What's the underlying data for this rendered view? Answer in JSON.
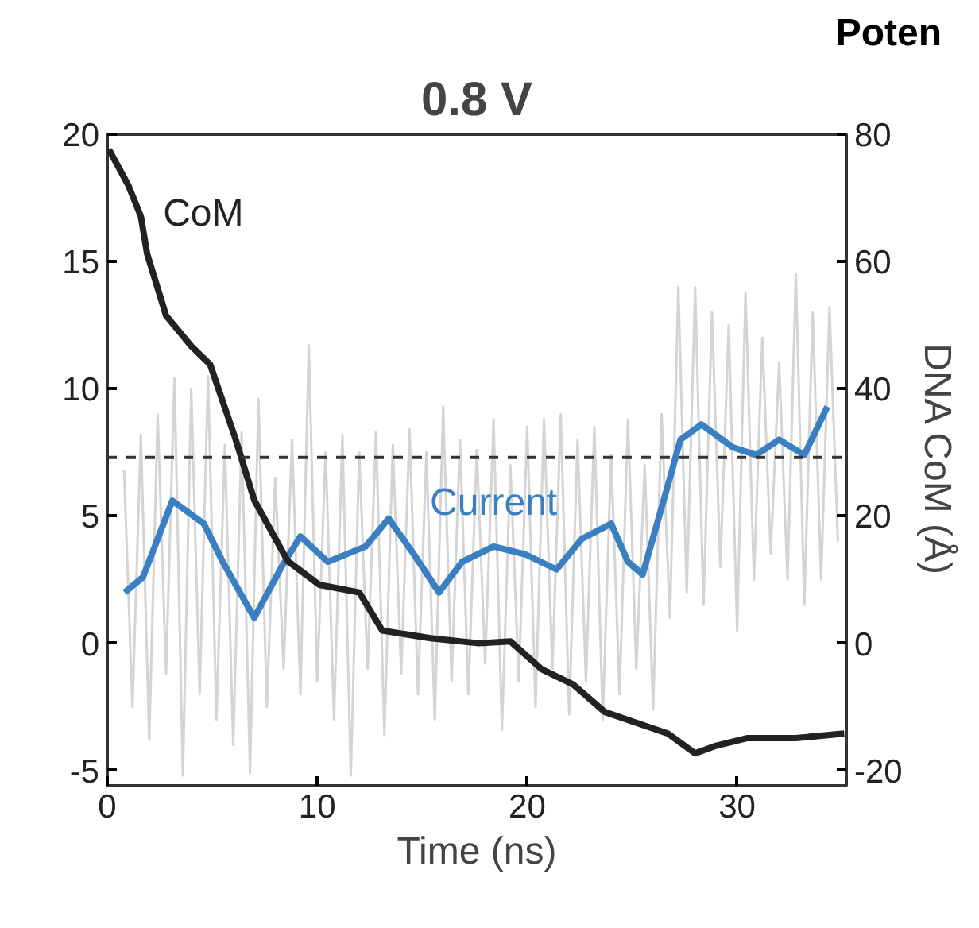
{
  "chart_data": {
    "type": "line",
    "title": "0.8 V",
    "xlabel": "Time (ns)",
    "y2label": "DNA CoM (Å)",
    "annotations": [
      "Poten"
    ],
    "xlim": [
      0,
      35.2
    ],
    "xticks": [
      0,
      10,
      20,
      30
    ],
    "ylim": [
      -5.6,
      20
    ],
    "yticks": [
      -5,
      0,
      5,
      10,
      15,
      20
    ],
    "y2lim": [
      -22.4,
      80
    ],
    "y2ticks": [
      -20,
      0,
      20,
      40,
      60,
      80
    ],
    "grid": false,
    "line_style": "solid",
    "ref_lines": [
      {
        "axis": "y",
        "value": 7.3,
        "color": "#333333",
        "line_style": "dashed"
      }
    ],
    "series": [
      {
        "color": "#d4d4d4",
        "x": [
          0.8,
          1.2,
          1.6,
          2.0,
          2.4,
          2.8,
          3.2,
          3.6,
          4.0,
          4.4,
          4.8,
          5.2,
          5.6,
          6.0,
          6.4,
          6.8,
          7.2,
          7.6,
          8.0,
          8.4,
          8.8,
          9.2,
          9.6,
          10.0,
          10.4,
          10.8,
          11.2,
          11.6,
          12.0,
          12.4,
          12.8,
          13.2,
          13.6,
          14.0,
          14.4,
          14.8,
          15.2,
          15.6,
          16.0,
          16.4,
          16.8,
          17.2,
          17.6,
          18.0,
          18.4,
          18.8,
          19.2,
          19.6,
          20.0,
          20.4,
          20.8,
          21.2,
          21.6,
          22.0,
          22.4,
          22.8,
          23.2,
          23.6,
          24.0,
          24.4,
          24.8,
          25.2,
          25.6,
          26.0,
          26.4,
          26.8,
          27.2,
          27.6,
          28.0,
          28.4,
          28.8,
          29.2,
          29.6,
          30.0,
          30.4,
          30.8,
          31.2,
          31.6,
          32.0,
          32.4,
          32.8,
          33.2,
          33.6,
          34.0,
          34.4,
          34.8
        ],
        "values": [
          6.8,
          -2.5,
          8.2,
          -3.8,
          9.0,
          -1.2,
          10.4,
          -5.2,
          10.0,
          -2.0,
          10.5,
          -3.0,
          7.8,
          -4.0,
          8.3,
          -5.1,
          9.6,
          -2.5,
          6.5,
          -1.0,
          8.0,
          -2.0,
          11.7,
          -1.5,
          7.5,
          -3.0,
          8.2,
          -5.2,
          7.5,
          -1.0,
          8.3,
          -3.6,
          7.8,
          -1.2,
          8.4,
          -2.0,
          7.5,
          -3.0,
          9.3,
          -1.5,
          8.0,
          -2.0,
          7.6,
          -0.8,
          8.8,
          -3.4,
          7.0,
          -1.5,
          8.5,
          -2.5,
          8.8,
          -1.0,
          9.0,
          -2.8,
          8.0,
          -1.5,
          8.5,
          -3.0,
          7.4,
          -2.0,
          8.8,
          -1.0,
          7.0,
          -2.6,
          9.0,
          1.0,
          14.0,
          2.0,
          14.0,
          1.5,
          13.0,
          3.0,
          12.5,
          0.5,
          13.8,
          2.5,
          12.0,
          3.5,
          11.0,
          2.5,
          14.5,
          1.5,
          13.0,
          2.5,
          13.2,
          4.0
        ]
      },
      {
        "name": "Current",
        "color": "#3a7fc1",
        "x": [
          0.83,
          1.7,
          3.1,
          4.6,
          5.5,
          7.0,
          8.3,
          9.2,
          10.5,
          12.3,
          13.4,
          14.6,
          15.8,
          16.9,
          18.4,
          19.9,
          21.4,
          22.6,
          24.0,
          24.8,
          25.5,
          26.7,
          27.3,
          28.3,
          29.8,
          30.9,
          32.0,
          33.2,
          34.3
        ],
        "values": [
          2.0,
          2.6,
          5.6,
          4.7,
          3.2,
          1.0,
          3.0,
          4.2,
          3.2,
          3.8,
          4.9,
          3.5,
          2.0,
          3.2,
          3.8,
          3.5,
          2.9,
          4.1,
          4.7,
          3.2,
          2.7,
          6.2,
          8.0,
          8.6,
          7.7,
          7.4,
          8.0,
          7.4,
          9.3
        ]
      },
      {
        "name": "CoM",
        "color": "#222222",
        "axis": "y2",
        "x": [
          0.08,
          1.0,
          1.6,
          1.9,
          2.8,
          4.0,
          4.9,
          6.1,
          7.0,
          8.6,
          10.1,
          12.0,
          13.1,
          15.4,
          17.7,
          19.2,
          20.7,
          22.2,
          23.7,
          25.2,
          26.7,
          28.0,
          29.0,
          30.5,
          32.8,
          35.1
        ],
        "values": [
          77.6,
          72.0,
          67.1,
          61.2,
          51.5,
          46.7,
          43.8,
          32.2,
          22.5,
          12.9,
          9.2,
          8.0,
          2.0,
          0.8,
          0.0,
          0.3,
          -4.1,
          -6.5,
          -10.8,
          -12.5,
          -14.2,
          -17.3,
          -16.1,
          -14.9,
          -14.9,
          -14.2
        ]
      }
    ]
  }
}
